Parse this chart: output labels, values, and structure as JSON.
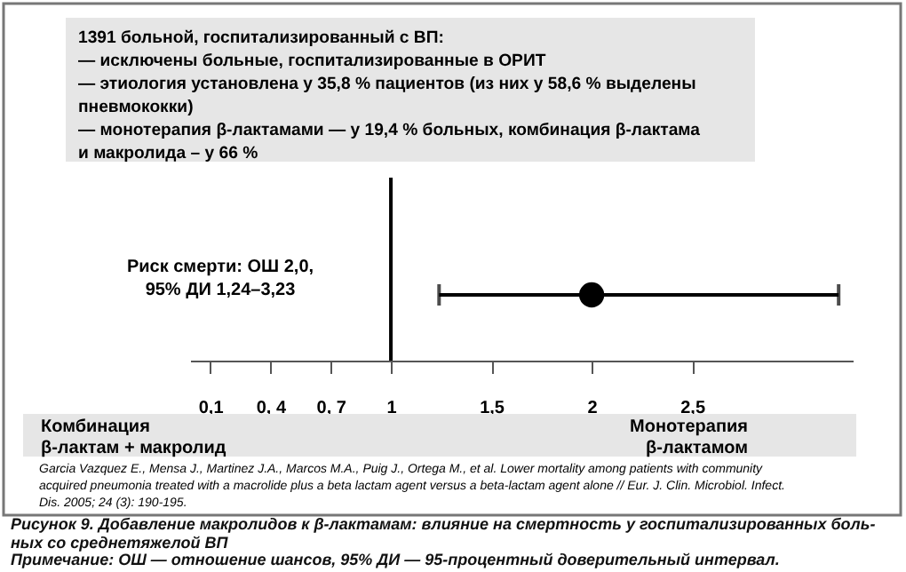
{
  "chart_data": {
    "type": "scatter",
    "orientation": "horizontal",
    "title": "Рисунок 9. Добавление макролидов к β-лактамам: влияние на смертность у госпитализированных боль-\nных со среднетяжелой ВП",
    "categories": [
      null
    ],
    "values": [
      2.0
    ],
    "errors": [
      [
        1.24,
        3.23
      ]
    ],
    "color": "#000000",
    "marker": "circle",
    "tick_labels": "x",
    "xlim": [
      0,
      3.3
    ],
    "xticks": [
      {
        "value": 0.1,
        "label": "0,1"
      },
      {
        "value": 0.4,
        "label": "0,  4"
      },
      {
        "value": 0.7,
        "label": "0,  7"
      },
      1,
      {
        "value": 1.5,
        "label": "1,5"
      },
      2,
      {
        "value": 2.5,
        "label": "2,5"
      }
    ],
    "ref_lines": [
      {
        "axis": "x",
        "value": 1,
        "color": "#000000"
      }
    ],
    "annotations": [
      "1391 больной, госпитализированный с ВП:\n— исключены больные, госпитализированные в ОРИТ\n— этиология  установлена у 35,8 %  пациентов (из них у 58,6 % выделены\nпневмококки)\n— монотерапия β-лактамами — у 19,4 % больных, комбинация β-лактама\nи макролида –  у 66 %",
      "Риск смерти: ОШ 2,0,\n95% ДИ 1,24–3,23",
      "Комбинация\nβ-лактам + макролид",
      "Монотерапия\nβ-лактамом",
      "Garcia Vazquez E., Mensa J., Martinez J.A., Marcos M.A., Puig J., Ortega M., et al. Lower mortality among patients with community\nacquired pneumonia treated with a macrolide plus a beta lactam agent versus a beta-lactam agent alone // Eur. J. Clin. Microbiol. Infect.\nDis. 2005; 24 (3): 190-195.",
      "Примечание: ОШ — отношение шансов, 95% ДИ — 95-процентный доверительный интервал."
    ]
  }
}
